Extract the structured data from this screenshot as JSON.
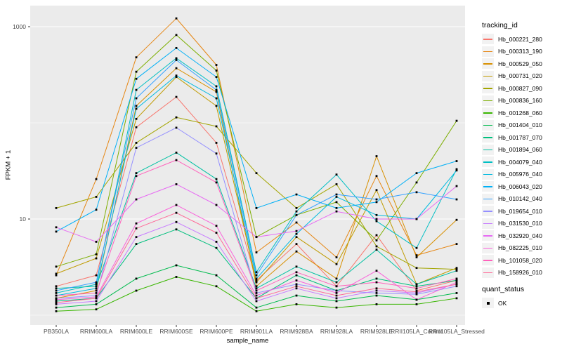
{
  "figure": {
    "xlabel": "sample_name",
    "ylabel": "FPKM + 1"
  },
  "legend": {
    "tracking_title": "tracking_id",
    "quant_title": "quant_status",
    "quant_items": [
      {
        "label": "OK",
        "marker_icon": "black-square-point"
      }
    ]
  },
  "chart_data": {
    "type": "line",
    "title": "",
    "xlabel": "sample_name",
    "ylabel": "FPKM + 1",
    "y_scale": "log10",
    "ylim": [
      0.8,
      1600
    ],
    "y_major_ticks": [
      10,
      1000
    ],
    "y_major_tick_labels": [
      "10",
      "1000"
    ],
    "y_minor_gridlines": [
      1,
      100
    ],
    "grid": "on",
    "legend_position": "right",
    "panel_background": "#EBEBEB",
    "gridline_color": "#FFFFFF",
    "point_marker": "small-black-square",
    "categories": [
      "PB350LA",
      "RRIM600LA",
      "RRIM600LE",
      "RRIM600SE",
      "RRIM600PE",
      "RRIM901LA",
      "RRIM928BA",
      "RRIM928LA",
      "RRIM928LE",
      "RRII105LA_Control",
      "RRII105LA_Stressed"
    ],
    "series": [
      {
        "name": "Hb_000221_280",
        "color": "#F8766D",
        "values": [
          2.0,
          2.6,
          90,
          186,
          62,
          2.3,
          5.5,
          2.0,
          6.8,
          1.8,
          2.3
        ]
      },
      {
        "name": "Hb_000313_190",
        "color": "#E68613",
        "values": [
          2.6,
          26,
          480,
          1220,
          400,
          4.5,
          9.2,
          4.0,
          28,
          4.2,
          5.5
        ]
      },
      {
        "name": "Hb_000529_050",
        "color": "#D89000",
        "values": [
          1.5,
          1.8,
          150,
          370,
          210,
          2.0,
          4.6,
          2.4,
          45,
          4.0,
          9.8
        ]
      },
      {
        "name": "Hb_000731_020",
        "color": "#C09B00",
        "values": [
          2.7,
          3.9,
          110,
          300,
          150,
          2.2,
          6.5,
          3.4,
          20,
          2.1,
          3.1
        ]
      },
      {
        "name": "Hb_000827_090",
        "color": "#A3A500",
        "values": [
          13,
          17,
          62,
          114,
          92,
          30,
          13,
          23,
          5.2,
          3.1,
          3.0
        ]
      },
      {
        "name": "Hb_000836_160",
        "color": "#7CAE00",
        "values": [
          3.2,
          4.3,
          340,
          820,
          350,
          6.5,
          11,
          15,
          6.0,
          24,
          105
        ]
      },
      {
        "name": "Hb_001268_060",
        "color": "#39B600",
        "values": [
          1.1,
          1.15,
          1.8,
          2.5,
          2.0,
          1.1,
          1.3,
          1.2,
          1.3,
          1.3,
          1.5
        ]
      },
      {
        "name": "Hb_001404_010",
        "color": "#00BB4E",
        "values": [
          1.2,
          1.3,
          2.4,
          3.3,
          2.6,
          1.2,
          1.6,
          1.4,
          1.6,
          1.45,
          1.7
        ]
      },
      {
        "name": "Hb_001787_070",
        "color": "#00BF7D",
        "values": [
          1.4,
          1.5,
          5.5,
          7.8,
          5.0,
          1.5,
          2.6,
          1.8,
          2.4,
          2.0,
          2.3
        ]
      },
      {
        "name": "Hb_001894_060",
        "color": "#00C1A3",
        "values": [
          1.9,
          2.0,
          30,
          49,
          26,
          1.9,
          3.2,
          2.2,
          4.8,
          2.1,
          2.9
        ]
      },
      {
        "name": "Hb_004079_040",
        "color": "#00BFC4",
        "values": [
          1.7,
          2.1,
          220,
          470,
          240,
          2.8,
          12,
          29,
          9.5,
          5.0,
          33
        ]
      },
      {
        "name": "Hb_005976_040",
        "color": "#00BAE0",
        "values": [
          1.6,
          1.9,
          140,
          310,
          180,
          2.4,
          7.0,
          17,
          11,
          10,
          32
        ]
      },
      {
        "name": "Hb_006043_020",
        "color": "#00B0F6",
        "values": [
          7.4,
          12.5,
          287,
          600,
          300,
          13,
          18,
          13,
          15,
          30,
          40
        ]
      },
      {
        "name": "Hb_010142_040",
        "color": "#35A2FF",
        "values": [
          1.8,
          2.2,
          180,
          450,
          220,
          2.6,
          11,
          18,
          16,
          19,
          16
        ]
      },
      {
        "name": "Hb_019654_010",
        "color": "#9590FF",
        "values": [
          1.5,
          1.6,
          55,
          89,
          48,
          1.7,
          2.1,
          1.8,
          1.7,
          1.65,
          2.0
        ]
      },
      {
        "name": "Hb_031530_010",
        "color": "#C77CFF",
        "values": [
          1.3,
          1.4,
          6.5,
          9.3,
          5.8,
          1.4,
          1.9,
          1.5,
          1.8,
          1.7,
          2.1
        ]
      },
      {
        "name": "Hb_032920_040",
        "color": "#E76BF3",
        "values": [
          8.2,
          5.8,
          16,
          23,
          14,
          6.5,
          7.5,
          12,
          10,
          10,
          22
        ]
      },
      {
        "name": "Hb_082225_010",
        "color": "#FA62DB",
        "values": [
          1.45,
          1.55,
          9.0,
          14,
          8.5,
          1.6,
          2.3,
          1.7,
          2.9,
          1.45,
          2.2
        ]
      },
      {
        "name": "Hb_101058_020",
        "color": "#FF62BC",
        "values": [
          1.6,
          1.7,
          28,
          41,
          24,
          1.8,
          2.8,
          2.0,
          2.2,
          1.9,
          2.4
        ]
      },
      {
        "name": "Hb_158926_010",
        "color": "#FF6A98",
        "values": [
          1.35,
          1.5,
          8.0,
          11.6,
          7.2,
          1.5,
          2.0,
          1.6,
          1.9,
          1.75,
          2.1
        ]
      }
    ]
  }
}
